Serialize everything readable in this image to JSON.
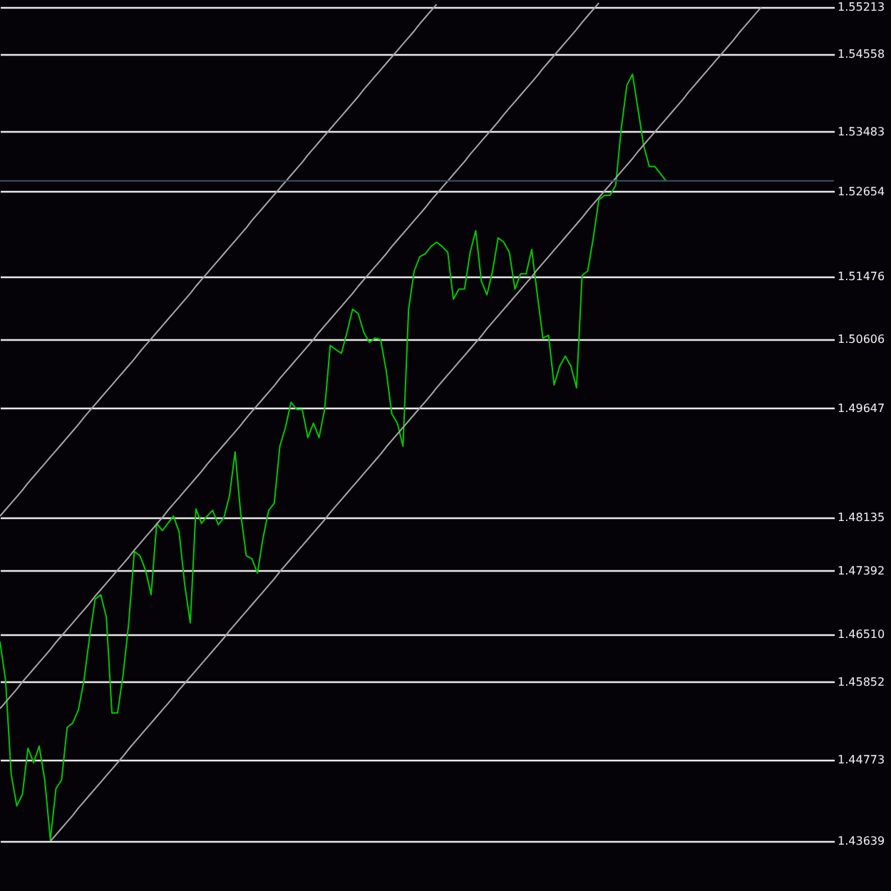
{
  "chart_data": {
    "type": "line",
    "categories": [
      null,
      null,
      null,
      null,
      null,
      null,
      null,
      null,
      null,
      null,
      null,
      null,
      null,
      null,
      null,
      null,
      null,
      null,
      null,
      null,
      null,
      null,
      null,
      null,
      null,
      null,
      null,
      null,
      null,
      null,
      null,
      null,
      null,
      null,
      null,
      null,
      null,
      null,
      null,
      null,
      null,
      null,
      null,
      null,
      null,
      null,
      null,
      null,
      null,
      null,
      null,
      null,
      null,
      null,
      null,
      null,
      null,
      null,
      null,
      null,
      null,
      null,
      null,
      null,
      null,
      null,
      null,
      null,
      null,
      null,
      null,
      null,
      null,
      null,
      null,
      null,
      null,
      null,
      null,
      null,
      null,
      null,
      null,
      null,
      null,
      null,
      null,
      null,
      null,
      null,
      null,
      null,
      null,
      null,
      null,
      null,
      null,
      null,
      null,
      null,
      null,
      null,
      null,
      null,
      null,
      null,
      null,
      null,
      null,
      null,
      null,
      null,
      null,
      null,
      null,
      null,
      null,
      null,
      null,
      null,
      null,
      null,
      null,
      null,
      null,
      null,
      null,
      null,
      null,
      null,
      null,
      null,
      null,
      null,
      null,
      null,
      null,
      null,
      null,
      null,
      null,
      null,
      null,
      null,
      null,
      null,
      null,
      null,
      null,
      null
    ],
    "series": [
      {
        "type": "line",
        "color": "#00c800",
        "values": [
          1.4641,
          1.4587,
          1.4457,
          1.4413,
          1.4429,
          1.4493,
          1.4473,
          1.4496,
          1.4449,
          1.4366,
          1.4437,
          1.4449,
          1.4522,
          1.4528,
          1.4546,
          1.4587,
          1.4647,
          1.47,
          1.4706,
          1.4675,
          1.4542,
          1.4542,
          1.4595,
          1.4667,
          1.4766,
          1.476,
          1.474,
          1.4706,
          1.4805,
          1.4795,
          1.4805,
          1.4815,
          1.4793,
          1.472,
          1.4667,
          1.4825,
          1.4805,
          1.4815,
          1.4823,
          1.4803,
          1.4813,
          1.4843,
          1.4904,
          1.4819,
          1.476,
          1.4756,
          1.4736,
          1.4785,
          1.4823,
          1.4833,
          1.4912,
          1.4938,
          1.4973,
          1.4963,
          1.4963,
          1.4924,
          1.4944,
          1.4924,
          1.4963,
          1.5052,
          1.5046,
          1.5041,
          1.507,
          1.5102,
          1.5096,
          1.507,
          1.5056,
          1.5062,
          1.506,
          1.5017,
          1.4957,
          1.4944,
          1.4912,
          1.5102,
          1.5155,
          1.5175,
          1.5179,
          1.5189,
          1.5195,
          1.5189,
          1.5181,
          1.5116,
          1.513,
          1.513,
          1.5181,
          1.5211,
          1.5141,
          1.5122,
          1.5155,
          1.5201,
          1.5195,
          1.5181,
          1.513,
          1.5151,
          1.5151,
          1.5185,
          1.5122,
          1.5062,
          1.5066,
          1.4997,
          1.5023,
          1.5037,
          1.5023,
          1.4993,
          1.5149,
          1.5155,
          1.5201,
          1.5254,
          1.526,
          1.526,
          1.5274,
          1.5353,
          1.5413,
          1.5428,
          1.5379,
          1.5329,
          1.53,
          1.53,
          1.529,
          1.528,
          null,
          null,
          null,
          null,
          null,
          null,
          null,
          null,
          null,
          null,
          null,
          null,
          null,
          null,
          null,
          null,
          null,
          null,
          null,
          null,
          null,
          null,
          null,
          null,
          null,
          null,
          null,
          null,
          null,
          null
        ]
      },
      {
        "type": "line",
        "color": "#a8a8a8",
        "values": [
          1.4815,
          1.4824,
          1.4833,
          1.4842,
          1.4851,
          1.4861,
          1.487,
          1.4879,
          1.4888,
          1.4897,
          1.4906,
          1.4915,
          1.4924,
          1.4933,
          1.4942,
          1.4952,
          1.4961,
          1.497,
          1.4979,
          1.4988,
          1.4997,
          1.5006,
          1.5015,
          1.5024,
          1.5033,
          1.5043,
          1.5052,
          1.5061,
          1.507,
          1.5079,
          1.5088,
          1.5097,
          1.5106,
          1.5115,
          1.5124,
          1.5134,
          1.5143,
          1.5152,
          1.5161,
          1.517,
          1.5179,
          1.5188,
          1.5197,
          1.5206,
          1.5215,
          1.5225,
          1.5234,
          1.5243,
          1.5252,
          1.5261,
          1.527,
          1.5279,
          1.5288,
          1.5297,
          1.5306,
          1.5316,
          1.5325,
          1.5334,
          1.5343,
          1.5352,
          1.5361,
          1.537,
          1.5379,
          1.5388,
          1.5397,
          1.5407,
          1.5416,
          1.5425,
          1.5434,
          1.5443,
          1.5452,
          1.5461,
          1.547,
          1.5479,
          1.5488,
          1.5498,
          1.5507,
          1.5516,
          1.5525,
          null,
          null,
          null,
          null,
          null,
          null,
          null,
          null,
          null,
          null,
          null,
          null,
          null,
          null,
          null,
          null,
          null,
          null,
          null,
          null,
          null,
          null,
          null,
          null,
          null,
          null,
          null,
          null,
          null,
          null,
          null,
          null,
          null,
          null,
          null,
          null,
          null,
          null,
          null,
          null,
          null,
          null,
          null,
          null,
          null,
          null,
          null,
          null,
          null,
          null,
          null,
          null,
          null,
          null,
          null,
          null,
          null,
          null,
          null,
          null,
          null,
          null,
          null,
          null,
          null,
          null,
          null,
          null,
          null,
          null,
          null
        ]
      },
      {
        "type": "line",
        "color": "#a8a8a8",
        "values": [
          1.4548,
          1.4557,
          1.4566,
          1.4575,
          1.4585,
          1.4594,
          1.4603,
          1.4612,
          1.4621,
          1.463,
          1.464,
          1.4649,
          1.4658,
          1.4667,
          1.4676,
          1.4685,
          1.4694,
          1.4704,
          1.4713,
          1.4722,
          1.4731,
          1.474,
          1.4749,
          1.4758,
          1.4768,
          1.4777,
          1.4786,
          1.4795,
          1.4804,
          1.4813,
          1.4823,
          1.4832,
          1.4841,
          1.485,
          1.4859,
          1.4868,
          1.4877,
          1.4887,
          1.4896,
          1.4905,
          1.4914,
          1.4923,
          1.4932,
          1.4941,
          1.4951,
          1.496,
          1.4969,
          1.4978,
          1.4987,
          1.4996,
          1.5006,
          1.5015,
          1.5024,
          1.5033,
          1.5042,
          1.5051,
          1.506,
          1.507,
          1.5079,
          1.5088,
          1.5097,
          1.5106,
          1.5115,
          1.5124,
          1.5134,
          1.5143,
          1.5152,
          1.5161,
          1.517,
          1.5179,
          1.5189,
          1.5198,
          1.5207,
          1.5216,
          1.5225,
          1.5234,
          1.5243,
          1.5253,
          1.5262,
          1.5271,
          1.528,
          1.5289,
          1.5298,
          1.5307,
          1.5317,
          1.5326,
          1.5335,
          1.5344,
          1.5353,
          1.5362,
          1.5372,
          1.5381,
          1.539,
          1.5399,
          1.5408,
          1.5417,
          1.5426,
          1.5436,
          1.5445,
          1.5454,
          1.5463,
          1.5472,
          1.5481,
          1.549,
          1.55,
          1.5509,
          1.5518,
          1.5527,
          null,
          null,
          null,
          null,
          null,
          null,
          null,
          null,
          null,
          null,
          null,
          null,
          null,
          null,
          null,
          null,
          null,
          null,
          null,
          null,
          null,
          null,
          null,
          null,
          null,
          null,
          null,
          null,
          null,
          null,
          null,
          null,
          null,
          null,
          null,
          null,
          null,
          null,
          null,
          null,
          null,
          null
        ]
      },
      {
        "type": "line",
        "color": "#a8a8a8",
        "values": [
          null,
          null,
          null,
          null,
          null,
          null,
          null,
          null,
          null,
          1.4364,
          1.4373,
          1.4382,
          1.4391,
          1.44,
          1.441,
          1.4419,
          1.4428,
          1.4437,
          1.4446,
          1.4455,
          1.4464,
          1.4473,
          1.4482,
          1.4492,
          1.4501,
          1.451,
          1.4519,
          1.4528,
          1.4537,
          1.4546,
          1.4555,
          1.4564,
          1.4574,
          1.4583,
          1.4592,
          1.4601,
          1.461,
          1.4619,
          1.4628,
          1.4637,
          1.4646,
          1.4656,
          1.4665,
          1.4674,
          1.4683,
          1.4692,
          1.4701,
          1.471,
          1.4719,
          1.4728,
          1.4738,
          1.4747,
          1.4756,
          1.4765,
          1.4774,
          1.4783,
          1.4792,
          1.4801,
          1.481,
          1.482,
          1.4829,
          1.4838,
          1.4847,
          1.4856,
          1.4865,
          1.4874,
          1.4883,
          1.4892,
          1.4901,
          1.4911,
          1.492,
          1.4929,
          1.4938,
          1.4947,
          1.4956,
          1.4965,
          1.4974,
          1.4983,
          1.4993,
          1.5002,
          1.5011,
          1.502,
          1.5029,
          1.5038,
          1.5047,
          1.5056,
          1.5065,
          1.5075,
          1.5084,
          1.5093,
          1.5102,
          1.5111,
          1.512,
          1.5129,
          1.5138,
          1.5147,
          1.5157,
          1.5166,
          1.5175,
          1.5184,
          1.5193,
          1.5202,
          1.5211,
          1.522,
          1.5229,
          1.5239,
          1.5248,
          1.5257,
          1.5266,
          1.5275,
          1.5284,
          1.5293,
          1.5302,
          1.5311,
          1.5321,
          1.533,
          1.5339,
          1.5348,
          1.5357,
          1.5366,
          1.5375,
          1.5384,
          1.5393,
          1.5403,
          1.5412,
          1.5421,
          1.543,
          1.5439,
          1.5448,
          1.5457,
          1.5466,
          1.5475,
          1.5485,
          1.5494,
          1.5503,
          1.5512,
          1.5521,
          null,
          null,
          null,
          null,
          null,
          null,
          null,
          null,
          null,
          null,
          null,
          null,
          null
        ]
      }
    ],
    "ylim": [
      1.4295,
      1.5531
    ],
    "yticks": [
      1.55213,
      1.54558,
      1.53483,
      1.52654,
      1.51476,
      1.50606,
      1.49647,
      1.48135,
      1.47392,
      {
        "value": 1.4651,
        "label": "1.46510"
      },
      1.45852,
      1.44773,
      1.43639
    ],
    "grid": "y",
    "ref_lines": [
      {
        "axis": "y",
        "value": 1.528,
        "color": "#3a5464"
      }
    ]
  }
}
